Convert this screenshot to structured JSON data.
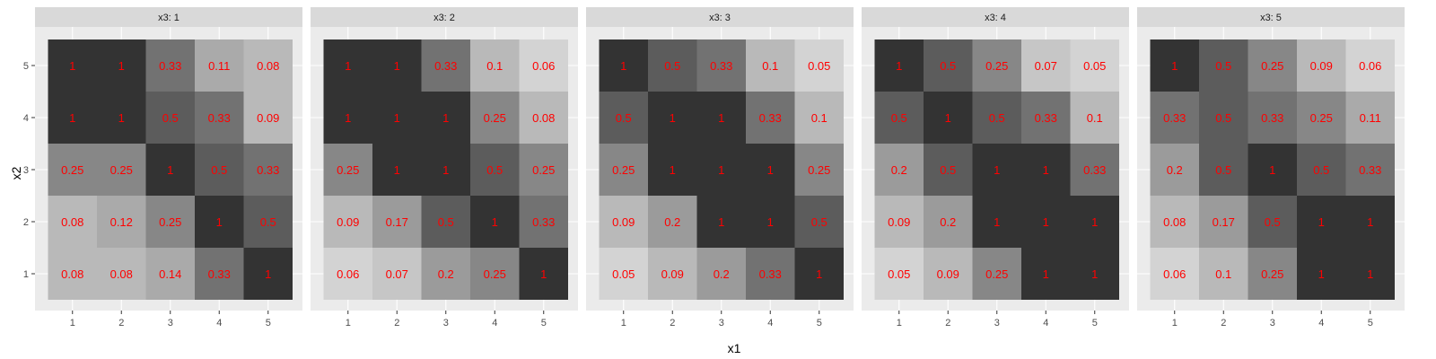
{
  "chart_data": {
    "type": "heatmap",
    "facet_variable": "x3",
    "facet_labels": [
      "x3: 1",
      "x3: 2",
      "x3: 3",
      "x3: 4",
      "x3: 5"
    ],
    "xlabel": "x1",
    "ylabel": "x2",
    "x_categories": [
      "1",
      "2",
      "3",
      "4",
      "5"
    ],
    "y_categories": [
      "1",
      "2",
      "3",
      "4",
      "5"
    ],
    "cell_label_color": "#ff0000",
    "panel_background": "#ebebeb",
    "strip_background": "#d9d9d9",
    "grid": true,
    "panels": [
      {
        "x3": 1,
        "rows_top_to_bottom": [
          [
            "1",
            "1",
            "0.33",
            "0.11",
            "0.08"
          ],
          [
            "1",
            "1",
            "0.5",
            "0.33",
            "0.09"
          ],
          [
            "0.25",
            "0.25",
            "1",
            "0.5",
            "0.33"
          ],
          [
            "0.08",
            "0.12",
            "0.25",
            "1",
            "0.5"
          ],
          [
            "0.08",
            "0.08",
            "0.14",
            "0.33",
            "1"
          ]
        ]
      },
      {
        "x3": 2,
        "rows_top_to_bottom": [
          [
            "1",
            "1",
            "0.33",
            "0.1",
            "0.06"
          ],
          [
            "1",
            "1",
            "1",
            "0.25",
            "0.08"
          ],
          [
            "0.25",
            "1",
            "1",
            "0.5",
            "0.25"
          ],
          [
            "0.09",
            "0.17",
            "0.5",
            "1",
            "0.33"
          ],
          [
            "0.06",
            "0.07",
            "0.2",
            "0.25",
            "1"
          ]
        ]
      },
      {
        "x3": 3,
        "rows_top_to_bottom": [
          [
            "1",
            "0.5",
            "0.33",
            "0.1",
            "0.05"
          ],
          [
            "0.5",
            "1",
            "1",
            "0.33",
            "0.1"
          ],
          [
            "0.25",
            "1",
            "1",
            "1",
            "0.25"
          ],
          [
            "0.09",
            "0.2",
            "1",
            "1",
            "0.5"
          ],
          [
            "0.05",
            "0.09",
            "0.2",
            "0.33",
            "1"
          ]
        ]
      },
      {
        "x3": 4,
        "rows_top_to_bottom": [
          [
            "1",
            "0.5",
            "0.25",
            "0.07",
            "0.05"
          ],
          [
            "0.5",
            "1",
            "0.5",
            "0.33",
            "0.1"
          ],
          [
            "0.2",
            "0.5",
            "1",
            "1",
            "0.33"
          ],
          [
            "0.09",
            "0.2",
            "1",
            "1",
            "1"
          ],
          [
            "0.05",
            "0.09",
            "0.25",
            "1",
            "1"
          ]
        ]
      },
      {
        "x3": 5,
        "rows_top_to_bottom": [
          [
            "1",
            "0.5",
            "0.25",
            "0.09",
            "0.06"
          ],
          [
            "0.33",
            "0.5",
            "0.33",
            "0.25",
            "0.11"
          ],
          [
            "0.2",
            "0.5",
            "1",
            "0.5",
            "0.33"
          ],
          [
            "0.08",
            "0.17",
            "0.5",
            "1",
            "1"
          ],
          [
            "0.06",
            "0.1",
            "0.25",
            "1",
            "1"
          ]
        ]
      }
    ]
  }
}
